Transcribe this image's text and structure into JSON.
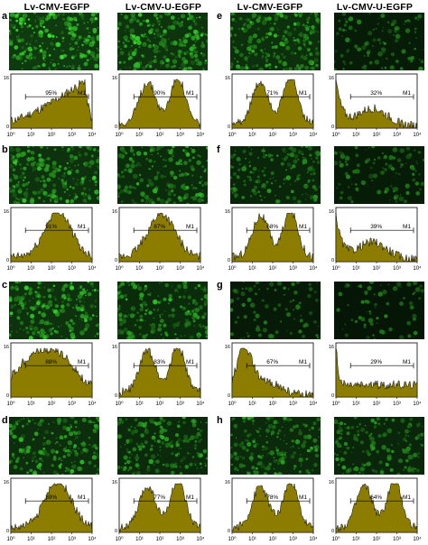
{
  "columns": [
    "Lv-CMV-EGFP",
    "Lv-CMV-U-EGFP",
    "Lv-CMV-EGFP",
    "Lv-CMV-U-EGFP"
  ],
  "panels": [
    {
      "letter": "a"
    },
    {
      "letter": "b"
    },
    {
      "letter": "c"
    },
    {
      "letter": "d"
    },
    {
      "letter": "e"
    },
    {
      "letter": "f"
    },
    {
      "letter": "g"
    },
    {
      "letter": "h"
    }
  ],
  "histogram": {
    "y_top_label": "16",
    "y_bottom_label": "0",
    "gate_label": "M1",
    "x_tick_labels": [
      "10⁰",
      "10¹",
      "10²",
      "10³",
      "10⁴"
    ],
    "fill_color": "#8c7d00",
    "stroke_color": "#000000"
  },
  "chart_data": [
    {
      "type": "area",
      "panel": "a",
      "column": "Lv-CMV-EGFP",
      "gate": "M1",
      "percent": "95%",
      "profile": "rise-late",
      "brightness": 0.95
    },
    {
      "type": "area",
      "panel": "a",
      "column": "Lv-CMV-U-EGFP",
      "gate": "M1",
      "percent": "90%",
      "profile": "two-peak",
      "brightness": 0.8
    },
    {
      "type": "area",
      "panel": "b",
      "column": "Lv-CMV-EGFP",
      "gate": "M1",
      "percent": "91%",
      "profile": "mid-high",
      "brightness": 0.75
    },
    {
      "type": "area",
      "panel": "b",
      "column": "Lv-CMV-U-EGFP",
      "gate": "M1",
      "percent": "87%",
      "profile": "bell",
      "brightness": 0.6
    },
    {
      "type": "area",
      "panel": "c",
      "column": "Lv-CMV-EGFP",
      "gate": "M1",
      "percent": "88%",
      "profile": "plateau",
      "brightness": 0.75
    },
    {
      "type": "area",
      "panel": "c",
      "column": "Lv-CMV-U-EGFP",
      "gate": "M1",
      "percent": "83%",
      "profile": "two-peak",
      "brightness": 0.6
    },
    {
      "type": "area",
      "panel": "d",
      "column": "Lv-CMV-EGFP",
      "gate": "M1",
      "percent": "89%",
      "profile": "mid-high",
      "brightness": 0.65
    },
    {
      "type": "area",
      "panel": "d",
      "column": "Lv-CMV-U-EGFP",
      "gate": "M1",
      "percent": "77%",
      "profile": "two-peak",
      "brightness": 0.55
    },
    {
      "type": "area",
      "panel": "e",
      "column": "Lv-CMV-EGFP",
      "gate": "M1",
      "percent": "71%",
      "profile": "two-peak",
      "brightness": 0.7
    },
    {
      "type": "area",
      "panel": "e",
      "column": "Lv-CMV-U-EGFP",
      "gate": "M1",
      "percent": "32%",
      "profile": "decay",
      "brightness": 0.2
    },
    {
      "type": "area",
      "panel": "f",
      "column": "Lv-CMV-EGFP",
      "gate": "M1",
      "percent": "68%",
      "profile": "two-peak",
      "brightness": 0.45
    },
    {
      "type": "area",
      "panel": "f",
      "column": "Lv-CMV-U-EGFP",
      "gate": "M1",
      "percent": "39%",
      "profile": "decay",
      "brightness": 0.2
    },
    {
      "type": "area",
      "panel": "g",
      "column": "Lv-CMV-EGFP",
      "gate": "M1",
      "percent": "67%",
      "profile": "early",
      "brightness": 0.15
    },
    {
      "type": "area",
      "panel": "g",
      "column": "Lv-CMV-U-EGFP",
      "gate": "M1",
      "percent": "29%",
      "profile": "spike",
      "brightness": 0.05
    },
    {
      "type": "area",
      "panel": "h",
      "column": "Lv-CMV-EGFP",
      "gate": "M1",
      "percent": "78%",
      "profile": "two-peak",
      "brightness": 0.55
    },
    {
      "type": "area",
      "panel": "h",
      "column": "Lv-CMV-U-EGFP",
      "gate": "M1",
      "percent": "64%",
      "profile": "two-peak",
      "brightness": 0.45
    }
  ]
}
